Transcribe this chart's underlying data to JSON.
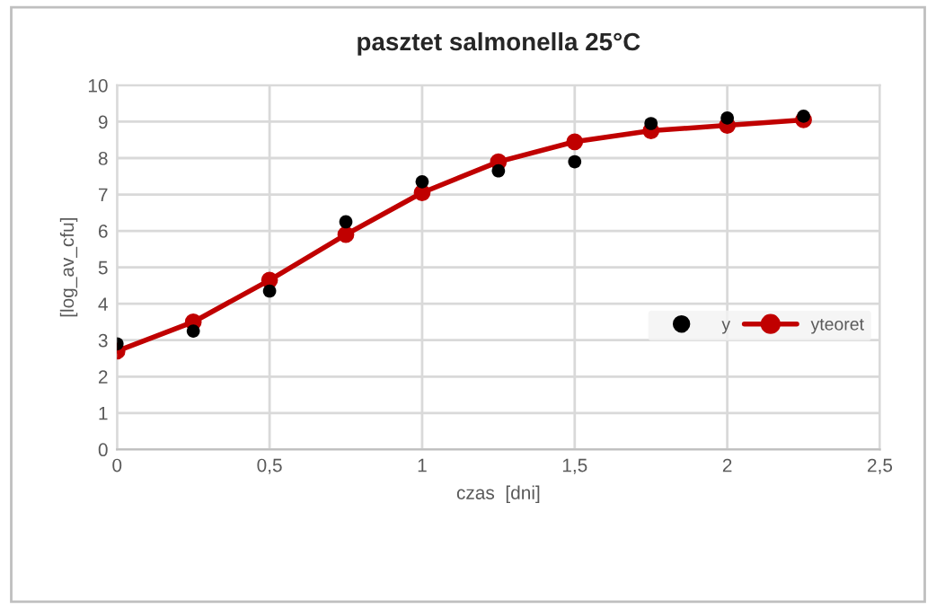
{
  "chart_data": {
    "type": "scatter",
    "title": "pasztet salmonella 25°C",
    "xlabel": "czas  [dni]",
    "ylabel": "[log_av_cfu]",
    "x": [
      0,
      0.25,
      0.5,
      0.75,
      1,
      1.25,
      1.5,
      1.75,
      2,
      2.25
    ],
    "series": [
      {
        "name": "y",
        "color": "#000000",
        "values": [
          2.9,
          3.25,
          4.35,
          6.25,
          7.35,
          7.65,
          7.9,
          8.95,
          9.1,
          9.15
        ]
      },
      {
        "name": "yteoret",
        "type": "line",
        "color": "#c00000",
        "values": [
          2.7,
          3.5,
          4.65,
          5.9,
          7.05,
          7.9,
          8.45,
          8.75,
          8.9,
          9.05
        ]
      }
    ],
    "xlim": [
      0,
      2.5
    ],
    "xticks": [
      0,
      {
        "value": 0.5,
        "label": "0,5"
      },
      1,
      {
        "value": 1.5,
        "label": "1,5"
      },
      2,
      {
        "value": 2.5,
        "label": "2,5"
      }
    ],
    "ylim": [
      0,
      10
    ],
    "yticks": [
      0,
      1,
      2,
      3,
      4,
      5,
      6,
      7,
      8,
      9,
      10
    ],
    "grid": true,
    "legend": "right",
    "marker": "circle",
    "line_style": "solid"
  }
}
